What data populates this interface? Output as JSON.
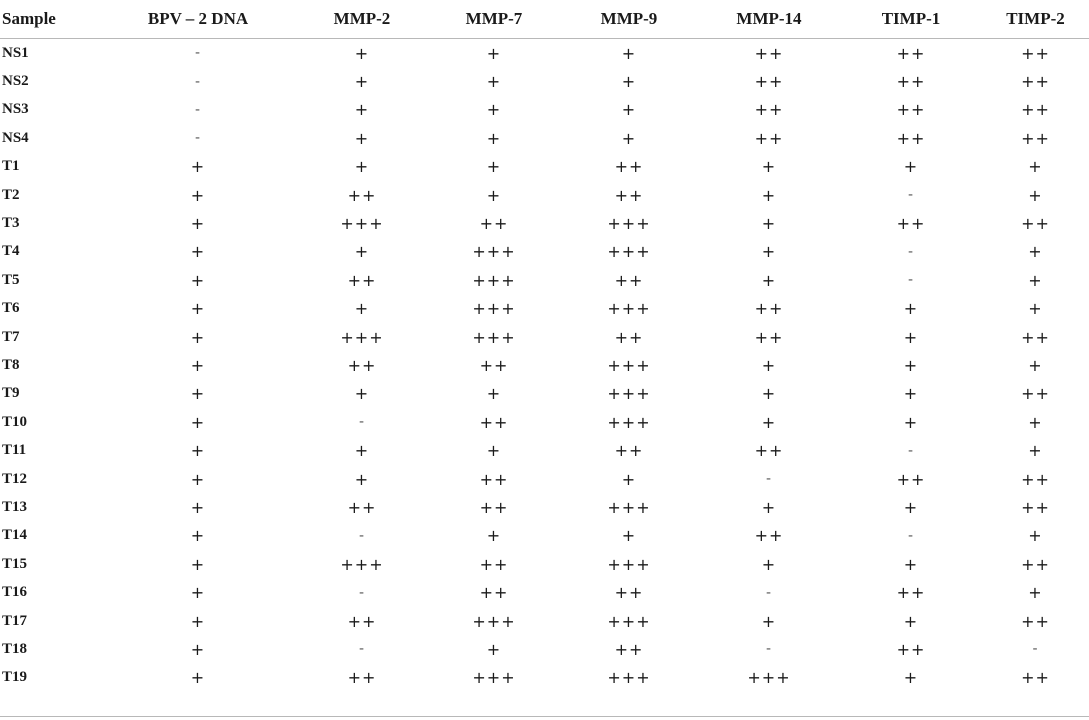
{
  "table": {
    "headers": [
      "Sample",
      "BPV – 2 DNA",
      "MMP-2",
      "MMP-7",
      "MMP-9",
      "MMP-14",
      "TIMP-1",
      "TIMP-2"
    ],
    "rows": [
      [
        "NS1",
        "-",
        "+",
        "+",
        "+",
        "++",
        "++",
        "++"
      ],
      [
        "NS2",
        "-",
        "+",
        "+",
        "+",
        "++",
        "++",
        "++"
      ],
      [
        "NS3",
        "-",
        "+",
        "+",
        "+",
        "++",
        "++",
        "++"
      ],
      [
        "NS4",
        "-",
        "+",
        "+",
        "+",
        "++",
        "++",
        "++"
      ],
      [
        "T1",
        "+",
        "+",
        "+",
        "++",
        "+",
        "+",
        "+"
      ],
      [
        "T2",
        "+",
        "++",
        "+",
        "++",
        "+",
        "-",
        "+"
      ],
      [
        "T3",
        "+",
        "+++",
        "++",
        "+++",
        "+",
        "++",
        "++"
      ],
      [
        "T4",
        "+",
        "+",
        "+++",
        "+++",
        "+",
        "-",
        "+"
      ],
      [
        "T5",
        "+",
        "++",
        "+++",
        "++",
        "+",
        "-",
        "+"
      ],
      [
        "T6",
        "+",
        "+",
        "+++",
        "+++",
        "++",
        "+",
        "+"
      ],
      [
        "T7",
        "+",
        "+++",
        "+++",
        "++",
        "++",
        "+",
        "++"
      ],
      [
        "T8",
        "+",
        "++",
        "++",
        "+++",
        "+",
        "+",
        "+"
      ],
      [
        "T9",
        "+",
        "+",
        "+",
        "+++",
        "+",
        "+",
        "++"
      ],
      [
        "T10",
        "+",
        "-",
        "++",
        "+++",
        "+",
        "+",
        "+"
      ],
      [
        "T11",
        "+",
        "+",
        "+",
        "++",
        "++",
        "-",
        "+"
      ],
      [
        "T12",
        "+",
        "+",
        "++",
        "+",
        "-",
        "++",
        "++"
      ],
      [
        "T13",
        "+",
        "++",
        "++",
        "+++",
        "+",
        "+",
        "++"
      ],
      [
        "T14",
        "+",
        "-",
        "+",
        "+",
        "++",
        "-",
        "+"
      ],
      [
        "T15",
        "+",
        "+++",
        "++",
        "+++",
        "+",
        "+",
        "++"
      ],
      [
        "T16",
        "+",
        "-",
        "++",
        "++",
        "-",
        "++",
        "+"
      ],
      [
        "T17",
        "+",
        "++",
        "+++",
        "+++",
        "+",
        "+",
        "++"
      ],
      [
        "T18",
        "+",
        "-",
        "+",
        "++",
        "-",
        "++",
        "-"
      ],
      [
        "T19",
        "+",
        "++",
        "+++",
        "+++",
        "+++",
        "+",
        "++"
      ]
    ]
  }
}
